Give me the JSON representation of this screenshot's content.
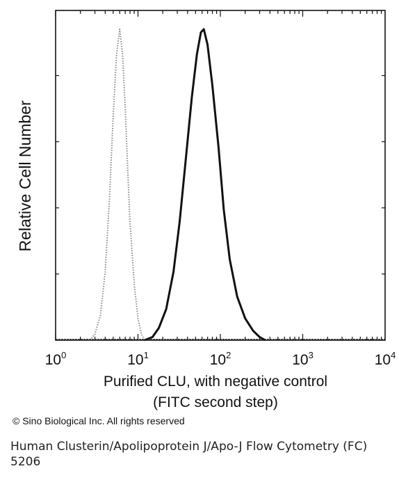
{
  "chart_data": {
    "type": "line",
    "title": "",
    "xlabel_line1": "Purified CLU, with negative control",
    "xlabel_line2": "(FITC second step)",
    "ylabel": "Relative Cell Number",
    "x_scale": "log",
    "xlim": [
      1,
      10000
    ],
    "ylim": [
      0,
      100
    ],
    "x_ticks": [
      {
        "base": "10",
        "exp": "0"
      },
      {
        "base": "10",
        "exp": "1"
      },
      {
        "base": "10",
        "exp": "2"
      },
      {
        "base": "10",
        "exp": "3"
      },
      {
        "base": "10",
        "exp": "4"
      }
    ],
    "grid": false,
    "series": [
      {
        "style": "dotted",
        "color": "#888888",
        "x": [
          2.6,
          3.0,
          3.5,
          4.0,
          4.5,
          5.0,
          5.5,
          6.0,
          6.5,
          7.0,
          7.5,
          8.0,
          9.0,
          10.0,
          11.0,
          12.0
        ],
        "y": [
          0,
          2,
          8,
          22,
          45,
          72,
          92,
          100,
          92,
          75,
          55,
          38,
          18,
          7,
          2,
          0
        ]
      },
      {
        "style": "solid",
        "color": "#111111",
        "x": [
          12,
          15,
          18,
          22,
          27,
          32,
          38,
          45,
          52,
          58,
          63,
          70,
          80,
          95,
          110,
          130,
          160,
          200,
          250,
          300,
          350
        ],
        "y": [
          0,
          1,
          4,
          10,
          22,
          38,
          58,
          78,
          92,
          99,
          100,
          95,
          82,
          62,
          42,
          26,
          14,
          7,
          3,
          1,
          0
        ]
      }
    ]
  },
  "copyright": "© Sino Biological Inc. All rights reserved",
  "caption": "Human Clusterin/Apolipoprotein J/Apo-J Flow Cytometry (FC) 5206"
}
